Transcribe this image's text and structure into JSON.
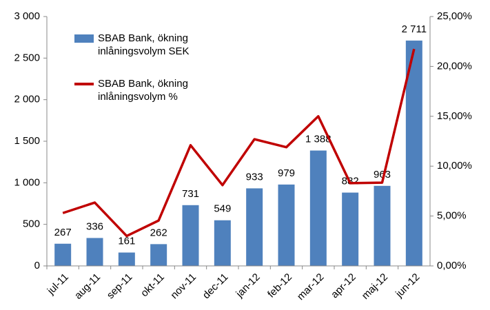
{
  "chart_data": {
    "type": "bar",
    "categories": [
      "jul-11",
      "aug-11",
      "sep-11",
      "okt-11",
      "nov-11",
      "dec-11",
      "jan-12",
      "feb-12",
      "mar-12",
      "apr-12",
      "maj-12",
      "jun-12"
    ],
    "series": [
      {
        "name": "SBAB Bank, ökning inlåningsvolym SEK",
        "type": "bar",
        "color": "#4f81bd",
        "values": [
          267,
          336,
          161,
          262,
          731,
          549,
          933,
          979,
          1388,
          882,
          963,
          2711
        ],
        "value_labels": [
          "267",
          "336",
          "161",
          "262",
          "731",
          "549",
          "933",
          "979",
          "1 388",
          "882",
          "963",
          "2 711"
        ]
      },
      {
        "name": "SBAB Bank, ökning inlåningsvolym %",
        "type": "line",
        "color": "#c00000",
        "axis": "y2",
        "values": [
          5.3,
          6.35,
          3.0,
          4.55,
          12.1,
          8.1,
          12.7,
          11.9,
          15.0,
          8.3,
          8.35,
          21.75
        ]
      }
    ],
    "ylim": [
      0,
      3000
    ],
    "yticks": [
      0,
      500,
      {
        "value": 1000,
        "label": "1 000"
      },
      {
        "value": 1500,
        "label": "1 500"
      },
      {
        "value": 2000,
        "label": "2 000"
      },
      {
        "value": 2500,
        "label": "2 500"
      },
      {
        "value": 3000,
        "label": "3 000"
      }
    ],
    "y2lim": [
      0,
      25
    ],
    "y2ticks": [
      {
        "value": 0,
        "label": "0,00%"
      },
      {
        "value": 5,
        "label": "5,00%"
      },
      {
        "value": 10,
        "label": "10,00%"
      },
      {
        "value": 15,
        "label": "15,00%"
      },
      {
        "value": 20,
        "label": "20,00%"
      },
      {
        "value": 25,
        "label": "25,00%"
      }
    ],
    "grid": false,
    "legend": "upper left"
  }
}
